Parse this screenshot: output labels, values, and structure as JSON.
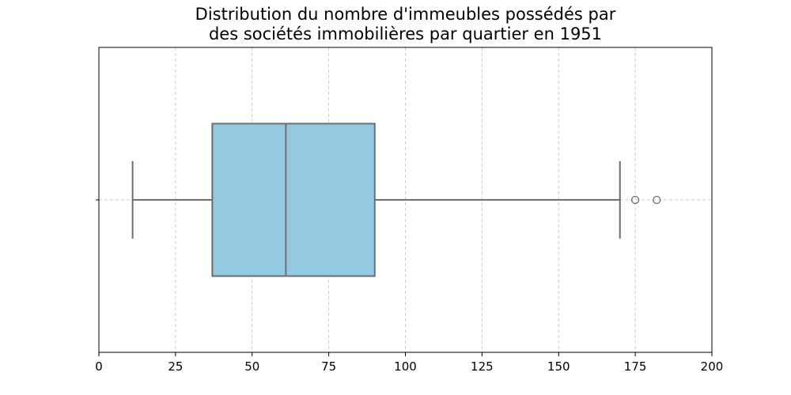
{
  "chart_data": {
    "type": "boxplot",
    "orientation": "horizontal",
    "title_lines": [
      "Distribution du nombre d'immeubles possédés par",
      "des sociétés immobilières par quartier en 1951"
    ],
    "xlabel": "",
    "ylabel": "",
    "xlim": [
      0,
      200
    ],
    "xticks": [
      0,
      25,
      50,
      75,
      100,
      125,
      150,
      175,
      200
    ],
    "grid": true,
    "box": {
      "whisker_low": 11,
      "q1": 37,
      "median": 61,
      "q3": 90,
      "whisker_high": 170,
      "outliers": [
        175,
        182
      ]
    },
    "colors": {
      "box_fill": "#92c9e0",
      "box_edge": "#6e6e6e",
      "grid": "#cccccc"
    }
  }
}
